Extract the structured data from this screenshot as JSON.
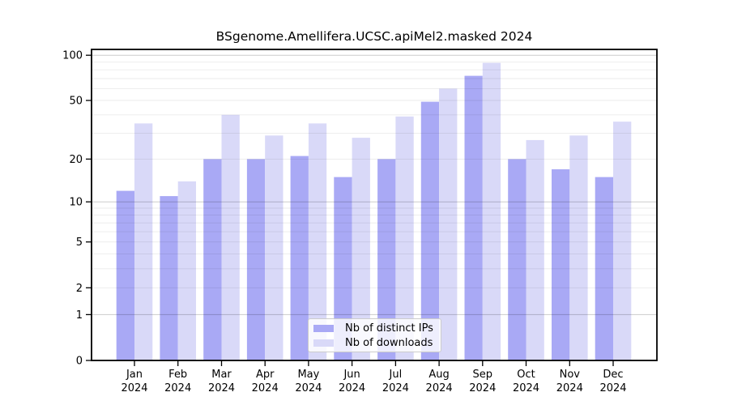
{
  "chart_data": {
    "type": "bar",
    "title": "BSgenome.Amellifera.UCSC.apiMel2.masked 2024",
    "categories": [
      "Jan",
      "Feb",
      "Mar",
      "Apr",
      "May",
      "Jun",
      "Jul",
      "Aug",
      "Sep",
      "Oct",
      "Nov",
      "Dec"
    ],
    "category_year": "2024",
    "series": [
      {
        "name": "Nb of distinct IPs",
        "color": "#a9a9f5",
        "values": [
          12,
          11,
          20,
          20,
          21,
          15,
          20,
          49,
          73,
          20,
          17,
          15
        ]
      },
      {
        "name": "Nb of downloads",
        "color": "#d9d9f8",
        "values": [
          35,
          14,
          40,
          29,
          35,
          28,
          39,
          60,
          89,
          27,
          29,
          36
        ]
      }
    ],
    "xlabel": "",
    "ylabel": "",
    "y_scale": "log10(1+x)",
    "y_ticks": [
      0,
      1,
      2,
      5,
      10,
      20,
      50,
      100
    ],
    "y_major_gridlines": [
      1,
      10,
      100
    ],
    "y_minor_gridlines": [
      2,
      3,
      4,
      5,
      6,
      7,
      8,
      9,
      20,
      30,
      40,
      50,
      60,
      70,
      80,
      90
    ],
    "ylim": [
      0,
      109
    ],
    "grid": true,
    "legend_position": "lower-center",
    "frame": true,
    "colors": {
      "frame": "#000000",
      "tick_text": "#000000",
      "major_grid": "rgba(0,0,0,0.20)",
      "minor_grid": "rgba(0,0,0,0.08)",
      "background": "#ffffff"
    }
  }
}
